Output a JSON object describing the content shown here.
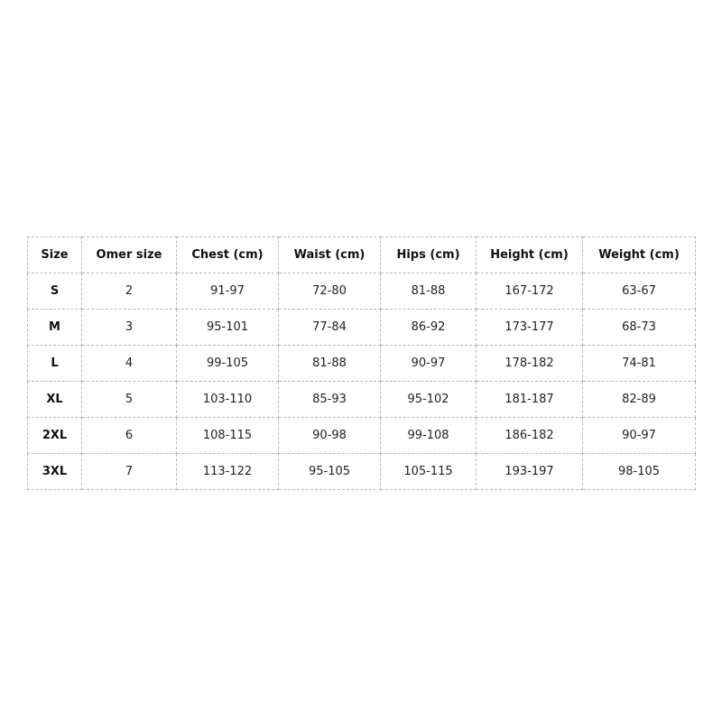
{
  "table": {
    "headers": [
      "Size",
      "Omer size",
      "Chest (cm)",
      "Waist (cm)",
      "Hips (cm)",
      "Height (cm)",
      "Weight (cm)"
    ],
    "rows": [
      [
        "S",
        "2",
        "91-97",
        "72-80",
        "81-88",
        "167-172",
        "63-67"
      ],
      [
        "M",
        "3",
        "95-101",
        "77-84",
        "86-92",
        "173-177",
        "68-73"
      ],
      [
        "L",
        "4",
        "99-105",
        "81-88",
        "90-97",
        "178-182",
        "74-81"
      ],
      [
        "XL",
        "5",
        "103-110",
        "85-93",
        "95-102",
        "181-187",
        "82-89"
      ],
      [
        "2XL",
        "6",
        "108-115",
        "90-98",
        "99-108",
        "186-182",
        "90-97"
      ],
      [
        "3XL",
        "7",
        "113-122",
        "95-105",
        "105-115",
        "193-197",
        "98-105"
      ]
    ]
  }
}
